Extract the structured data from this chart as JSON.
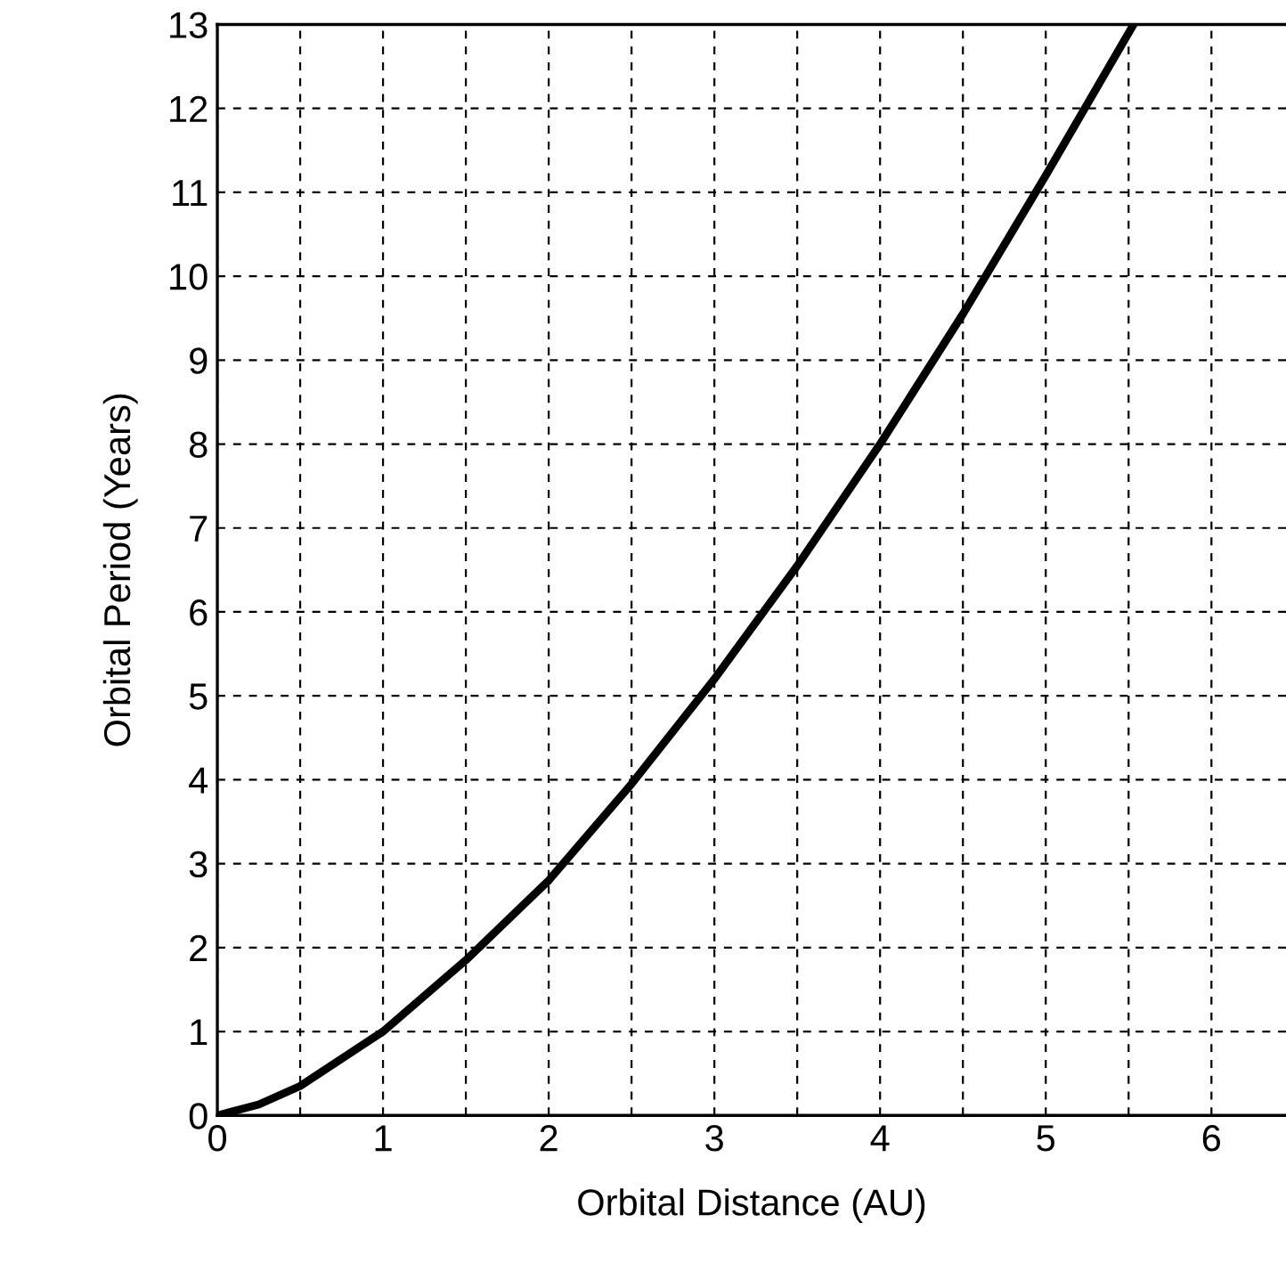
{
  "chart_data": {
    "type": "line",
    "xlabel": "Orbital Distance (AU)",
    "ylabel": "Orbital Period (Years)",
    "x": [
      0,
      0.25,
      0.5,
      1,
      1.5,
      2,
      2.5,
      3,
      3.5,
      4,
      4.5,
      5,
      5.53
    ],
    "series": [
      {
        "color": "#000000",
        "values": [
          0,
          0.13,
          0.35,
          1,
          1.85,
          2.8,
          3.95,
          5.2,
          6.55,
          8,
          9.55,
          11.2,
          13
        ]
      }
    ],
    "xlim": [
      0,
      6.45
    ],
    "ylim": [
      0,
      13
    ],
    "xticks": [
      0,
      {
        "value": 0.5,
        "label": null
      },
      1,
      {
        "value": 1.5,
        "label": null
      },
      2,
      {
        "value": 2.5,
        "label": null
      },
      3,
      {
        "value": 3.5,
        "label": null
      },
      4,
      {
        "value": 4.5,
        "label": null
      },
      5,
      {
        "value": 5.5,
        "label": null
      },
      6
    ],
    "yticks": [
      0,
      1,
      2,
      3,
      4,
      5,
      6,
      7,
      8,
      9,
      10,
      11,
      12,
      13
    ],
    "grid": true,
    "line_style": "solid",
    "marker": "none"
  }
}
